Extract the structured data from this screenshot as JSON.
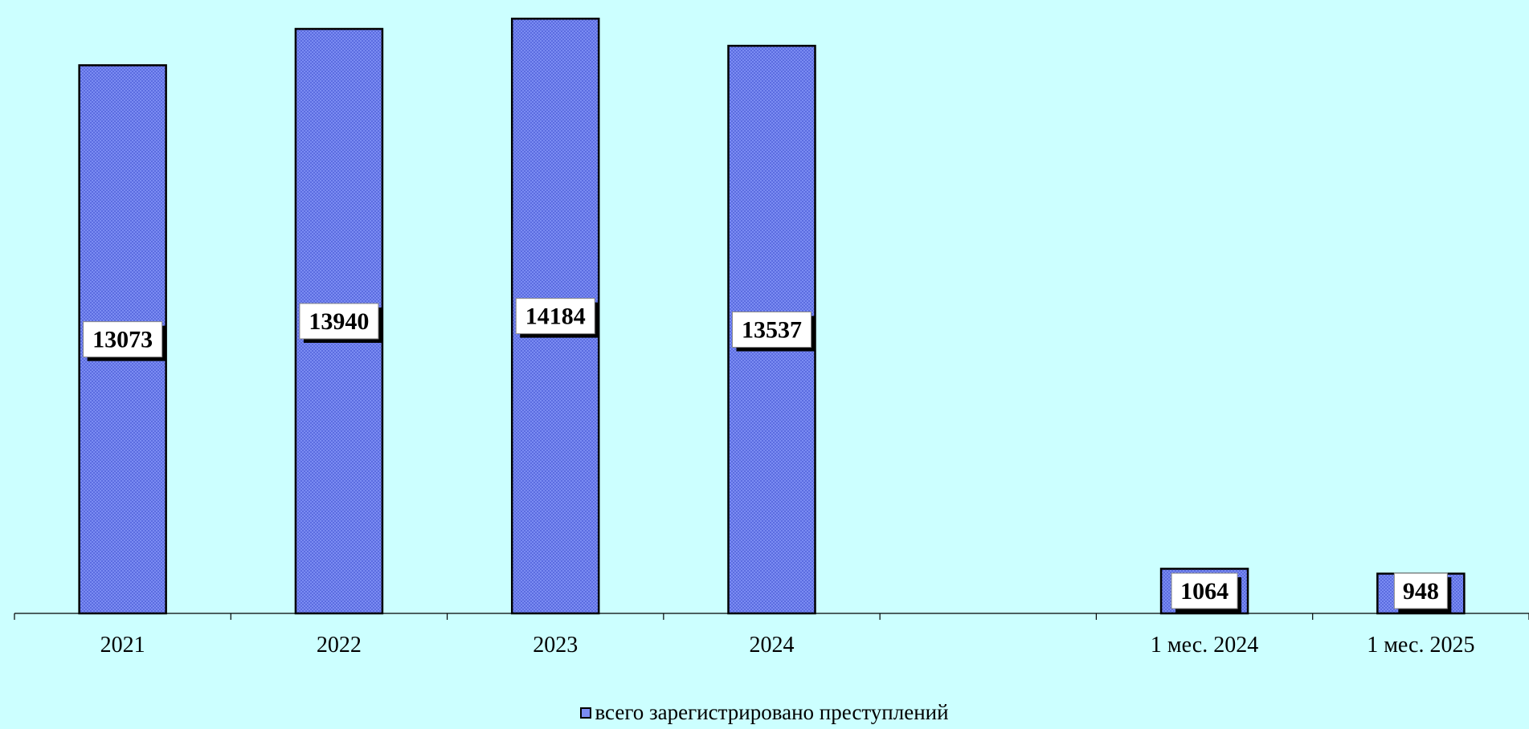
{
  "chart_data": {
    "type": "bar",
    "categories": [
      "2021",
      "2022",
      "2023",
      "2024",
      "",
      "1 мес. 2024",
      "1 мес. 2025"
    ],
    "values": [
      13073,
      13940,
      14184,
      13537,
      null,
      1064,
      948
    ],
    "data_labels": [
      "13073",
      "13940",
      "14184",
      "13537",
      "",
      "1064",
      "948"
    ],
    "series": [
      {
        "name": "всего зарегистрировано преступлений",
        "values": [
          13073,
          13940,
          14184,
          13537,
          null,
          1064,
          948
        ]
      }
    ],
    "title": "",
    "xlabel": "",
    "ylabel": "",
    "ylim": [
      0,
      14400
    ],
    "grid": false,
    "legend_position": "bottom",
    "colors": {
      "bar": "#7b8cf2",
      "bar_pattern": "#5b6ce0",
      "background": "#ccffff"
    }
  },
  "legend": {
    "label": "всего зарегистрировано преступлений"
  }
}
